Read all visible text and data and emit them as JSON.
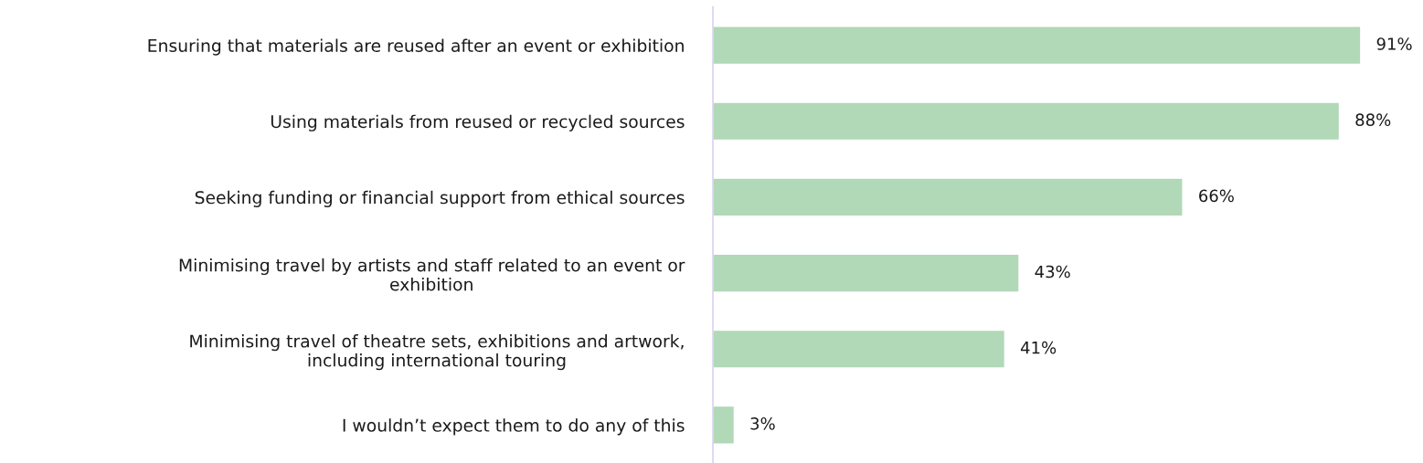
{
  "chart_data": {
    "type": "bar",
    "orientation": "horizontal",
    "categories": [
      "Ensuring that materials are reused after an event or exhibition",
      "Using materials from reused or recycled sources",
      "Seeking funding or financial support from ethical sources",
      "Minimising travel by artists and staff related to an event or\nexhibition",
      "Minimising travel of theatre sets, exhibitions and artwork,\nincluding international touring",
      "I wouldn’t expect them to do any of this"
    ],
    "values": [
      91,
      88,
      66,
      43,
      41,
      3
    ],
    "value_labels": [
      "91%",
      "88%",
      "66%",
      "43%",
      "41%",
      "3%"
    ],
    "color": "#b1d8b7",
    "tick_labels": "y",
    "grid": false,
    "legend": false
  }
}
